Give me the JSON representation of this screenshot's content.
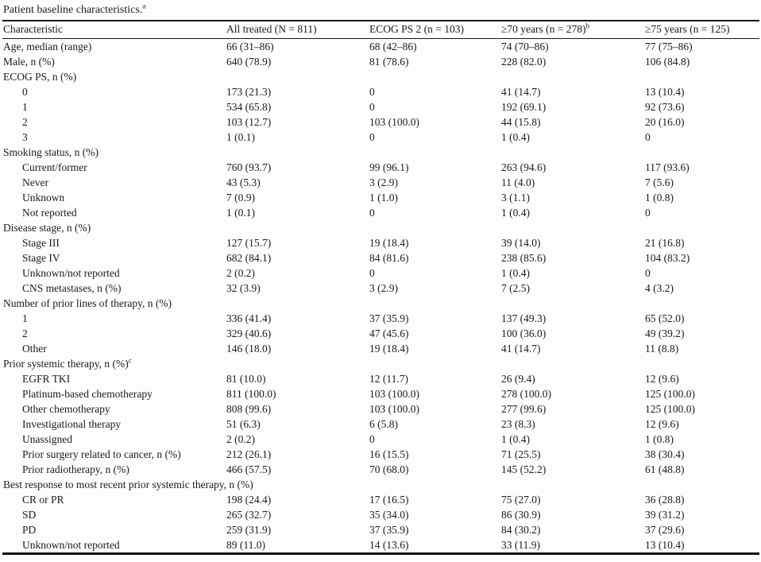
{
  "table": {
    "title": "Patient baseline characteristics.",
    "title_sup": "a",
    "columns": [
      {
        "label": "Characteristic",
        "sup": ""
      },
      {
        "label": "All treated (N = 811)",
        "sup": ""
      },
      {
        "label": "ECOG PS 2 (n = 103)",
        "sup": ""
      },
      {
        "label": "≥70 years (n = 278)",
        "sup": "b"
      },
      {
        "label": "≥75 years (n = 125)",
        "sup": ""
      }
    ],
    "rows": [
      {
        "label": "Age, median (range)",
        "sup": "",
        "indent": 0,
        "values": [
          "66 (31–86)",
          "68 (42–86)",
          "74 (70–86)",
          "77 (75–86)"
        ]
      },
      {
        "label": "Male, n (%)",
        "sup": "",
        "indent": 0,
        "values": [
          "640 (78.9)",
          "81 (78.6)",
          "228 (82.0)",
          "106 (84.8)"
        ]
      },
      {
        "label": "ECOG PS, n (%)",
        "sup": "",
        "indent": 0,
        "values": [
          "",
          "",
          "",
          ""
        ]
      },
      {
        "label": "0",
        "sup": "",
        "indent": 1,
        "values": [
          "173 (21.3)",
          "0",
          "41 (14.7)",
          "13 (10.4)"
        ]
      },
      {
        "label": "1",
        "sup": "",
        "indent": 1,
        "values": [
          "534 (65.8)",
          "0",
          "192 (69.1)",
          "92 (73.6)"
        ]
      },
      {
        "label": "2",
        "sup": "",
        "indent": 1,
        "values": [
          "103 (12.7)",
          "103 (100.0)",
          "44 (15.8)",
          "20 (16.0)"
        ]
      },
      {
        "label": "3",
        "sup": "",
        "indent": 1,
        "values": [
          "1 (0.1)",
          "0",
          "1 (0.4)",
          "0"
        ]
      },
      {
        "label": "Smoking status, n (%)",
        "sup": "",
        "indent": 0,
        "values": [
          "",
          "",
          "",
          ""
        ]
      },
      {
        "label": "Current/former",
        "sup": "",
        "indent": 1,
        "values": [
          "760 (93.7)",
          "99 (96.1)",
          "263 (94.6)",
          "117 (93.6)"
        ]
      },
      {
        "label": "Never",
        "sup": "",
        "indent": 1,
        "values": [
          "43 (5.3)",
          "3 (2.9)",
          "11 (4.0)",
          "7 (5.6)"
        ]
      },
      {
        "label": "Unknown",
        "sup": "",
        "indent": 1,
        "values": [
          "7 (0.9)",
          "1 (1.0)",
          "3 (1.1)",
          "1 (0.8)"
        ]
      },
      {
        "label": "Not reported",
        "sup": "",
        "indent": 1,
        "values": [
          "1 (0.1)",
          "0",
          "1 (0.4)",
          "0"
        ]
      },
      {
        "label": "Disease stage, n (%)",
        "sup": "",
        "indent": 0,
        "values": [
          "",
          "",
          "",
          ""
        ]
      },
      {
        "label": "Stage III",
        "sup": "",
        "indent": 1,
        "values": [
          "127 (15.7)",
          "19 (18.4)",
          "39 (14.0)",
          "21 (16.8)"
        ]
      },
      {
        "label": "Stage IV",
        "sup": "",
        "indent": 1,
        "values": [
          "682 (84.1)",
          "84 (81.6)",
          "238 (85.6)",
          "104 (83.2)"
        ]
      },
      {
        "label": "Unknown/not reported",
        "sup": "",
        "indent": 1,
        "values": [
          "2 (0.2)",
          "0",
          "1 (0.4)",
          "0"
        ]
      },
      {
        "label": "CNS metastases, n (%)",
        "sup": "",
        "indent": 1,
        "values": [
          "32 (3.9)",
          "3 (2.9)",
          "7 (2.5)",
          "4 (3.2)"
        ]
      },
      {
        "label": "Number of prior lines of therapy, n (%)",
        "sup": "",
        "indent": 0,
        "values": [
          "",
          "",
          "",
          ""
        ]
      },
      {
        "label": "1",
        "sup": "",
        "indent": 1,
        "values": [
          "336 (41.4)",
          "37 (35.9)",
          "137 (49.3)",
          "65 (52.0)"
        ]
      },
      {
        "label": "2",
        "sup": "",
        "indent": 1,
        "values": [
          "329 (40.6)",
          "47 (45.6)",
          "100 (36.0)",
          "49 (39.2)"
        ]
      },
      {
        "label": "Other",
        "sup": "",
        "indent": 1,
        "values": [
          "146 (18.0)",
          "19 (18.4)",
          "41 (14.7)",
          "11 (8.8)"
        ]
      },
      {
        "label": "Prior systemic therapy, n (%)",
        "sup": "c",
        "indent": 0,
        "values": [
          "",
          "",
          "",
          ""
        ]
      },
      {
        "label": "EGFR TKI",
        "sup": "",
        "indent": 1,
        "values": [
          "81 (10.0)",
          "12 (11.7)",
          "26 (9.4)",
          "12 (9.6)"
        ]
      },
      {
        "label": "Platinum-based chemotherapy",
        "sup": "",
        "indent": 1,
        "values": [
          "811 (100.0)",
          "103 (100.0)",
          "278 (100.0)",
          "125 (100.0)"
        ]
      },
      {
        "label": "Other chemotherapy",
        "sup": "",
        "indent": 1,
        "values": [
          "808 (99.6)",
          "103 (100.0)",
          "277 (99.6)",
          "125 (100.0)"
        ]
      },
      {
        "label": "Investigational therapy",
        "sup": "",
        "indent": 1,
        "values": [
          "51 (6.3)",
          "6 (5.8)",
          "23 (8.3)",
          "12 (9.6)"
        ]
      },
      {
        "label": "Unassigned",
        "sup": "",
        "indent": 1,
        "values": [
          "2 (0.2)",
          "0",
          "1 (0.4)",
          "1 (0.8)"
        ]
      },
      {
        "label": "Prior surgery related to cancer, n (%)",
        "sup": "",
        "indent": 1,
        "values": [
          "212 (26.1)",
          "16 (15.5)",
          "71 (25.5)",
          "38 (30.4)"
        ]
      },
      {
        "label": "Prior radiotherapy, n (%)",
        "sup": "",
        "indent": 1,
        "values": [
          "466 (57.5)",
          "70 (68.0)",
          "145 (52.2)",
          "61 (48.8)"
        ]
      },
      {
        "label": "Best response to most recent prior systemic therapy, n (%)",
        "sup": "",
        "indent": 0,
        "values": [
          "",
          "",
          "",
          ""
        ]
      },
      {
        "label": "CR or PR",
        "sup": "",
        "indent": 1,
        "values": [
          "198 (24.4)",
          "17 (16.5)",
          "75 (27.0)",
          "36 (28.8)"
        ]
      },
      {
        "label": "SD",
        "sup": "",
        "indent": 1,
        "values": [
          "265 (32.7)",
          "35 (34.0)",
          "86 (30.9)",
          "39 (31.2)"
        ]
      },
      {
        "label": "PD",
        "sup": "",
        "indent": 1,
        "values": [
          "259 (31.9)",
          "37 (35.9)",
          "84 (30.2)",
          "37 (29.6)"
        ]
      },
      {
        "label": "Unknown/not reported",
        "sup": "",
        "indent": 1,
        "values": [
          "89 (11.0)",
          "14 (13.6)",
          "33 (11.9)",
          "13 (10.4)"
        ]
      }
    ]
  }
}
